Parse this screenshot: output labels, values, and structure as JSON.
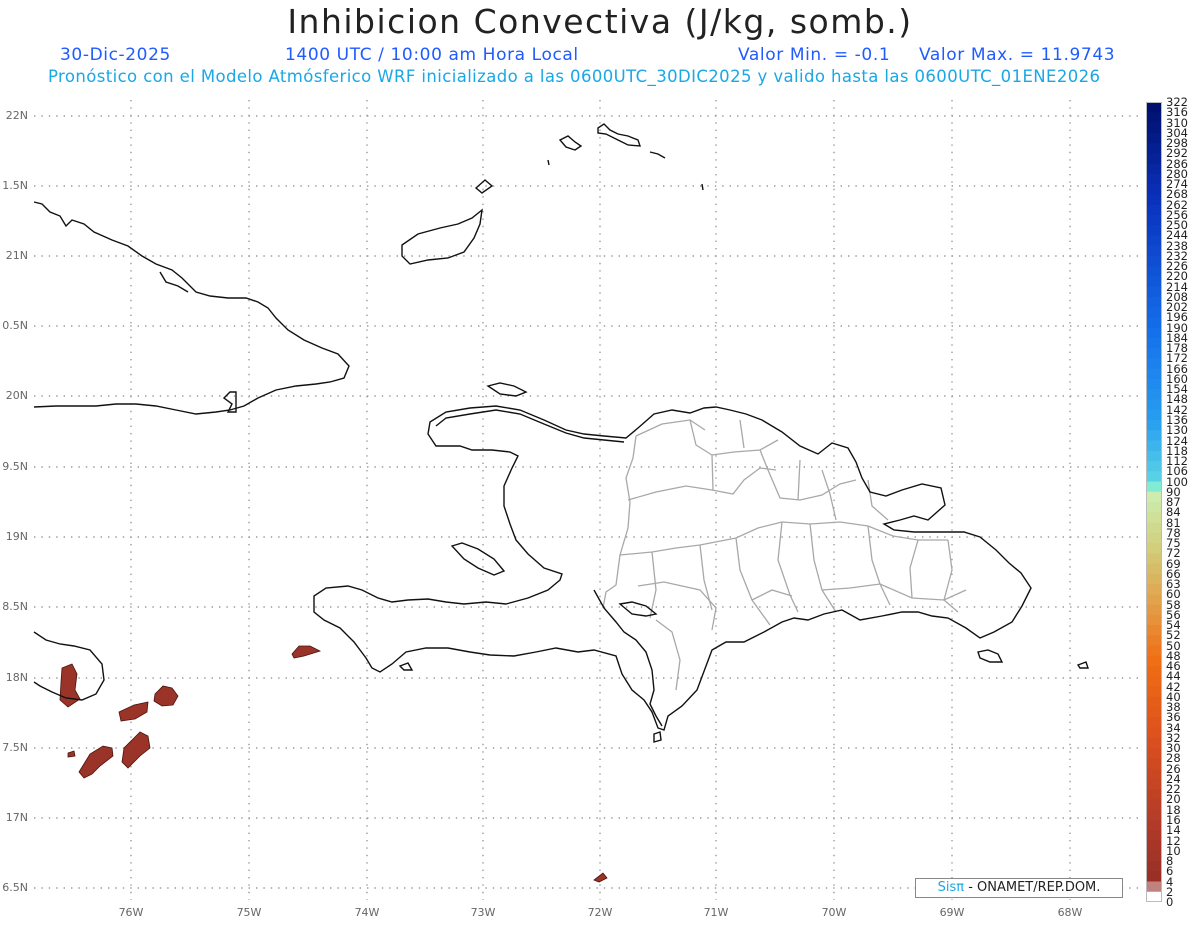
{
  "title": "Inhibicion Convectiva (J/kg, somb.)",
  "date": "30-Dic-2025",
  "time": "1400 UTC / 10:00 am Hora Local",
  "min_label": "Valor Min. = -0.1",
  "max_label": "Valor Max. = 11.9743",
  "description": "Pronóstico con el Modelo Atmósferico WRF inicializado a las 0600UTC_30DIC2025 y valido hasta las  0600UTC_01ENE2026",
  "credit": {
    "brand": "Sisπ",
    "text": " - ONAMET/REP.DOM."
  },
  "lat_labels": [
    "22N",
    "1.5N",
    "21N",
    "0.5N",
    "20N",
    "9.5N",
    "19N",
    "8.5N",
    "18N",
    "7.5N",
    "17N",
    "6.5N"
  ],
  "lon_labels": [
    "76W",
    "75W",
    "74W",
    "73W",
    "72W",
    "71W",
    "70W",
    "69W",
    "68W"
  ],
  "colorbar": {
    "labels": [
      "322",
      "316",
      "310",
      "304",
      "298",
      "292",
      "286",
      "280",
      "274",
      "268",
      "262",
      "256",
      "250",
      "244",
      "238",
      "232",
      "226",
      "220",
      "214",
      "208",
      "202",
      "196",
      "190",
      "184",
      "178",
      "172",
      "166",
      "160",
      "154",
      "148",
      "142",
      "136",
      "130",
      "124",
      "118",
      "112",
      "106",
      "100",
      "90",
      "87",
      "84",
      "81",
      "78",
      "75",
      "72",
      "69",
      "66",
      "63",
      "60",
      "58",
      "56",
      "54",
      "52",
      "50",
      "48",
      "46",
      "44",
      "42",
      "40",
      "38",
      "36",
      "34",
      "32",
      "30",
      "28",
      "26",
      "24",
      "22",
      "20",
      "18",
      "16",
      "14",
      "12",
      "10",
      "8",
      "6",
      "4",
      "2",
      "0"
    ]
  },
  "colors": {
    "cin_shading": "#9a3328",
    "coast": "#111111",
    "provinces": "#a8a8a8",
    "grid": "#9a9a9a"
  }
}
